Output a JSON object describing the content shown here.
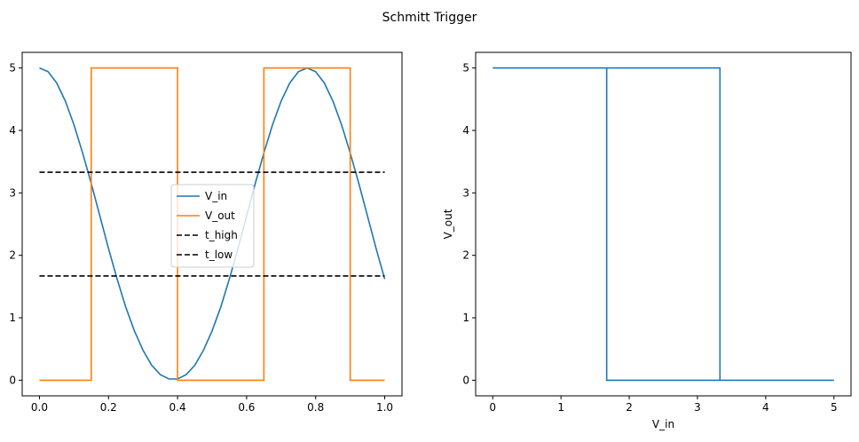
{
  "figure": {
    "title": "Schmitt Trigger"
  },
  "chart_data": [
    {
      "type": "line",
      "title": "",
      "xlabel": "",
      "ylabel": "",
      "xlim": [
        -0.05,
        1.05
      ],
      "ylim": [
        -0.25,
        5.25
      ],
      "xticks": [
        0.0,
        0.2,
        0.4,
        0.6,
        0.8,
        1.0
      ],
      "xtick_labels": [
        "0.0",
        "0.2",
        "0.4",
        "0.6",
        "0.8",
        "1.0"
      ],
      "yticks": [
        0,
        1,
        2,
        3,
        4,
        5
      ],
      "ytick_labels": [
        "0",
        "1",
        "2",
        "3",
        "4",
        "5"
      ],
      "grid": false,
      "legend": {
        "position": "center"
      },
      "series": [
        {
          "name": "V_in",
          "style": "solid",
          "color": "#1f77b4",
          "x": [
            0.0,
            0.025,
            0.05,
            0.075,
            0.1,
            0.125,
            0.15,
            0.175,
            0.2,
            0.225,
            0.25,
            0.275,
            0.3,
            0.325,
            0.35,
            0.375,
            0.4,
            0.425,
            0.45,
            0.475,
            0.5,
            0.525,
            0.55,
            0.575,
            0.6,
            0.625,
            0.65,
            0.675,
            0.7,
            0.725,
            0.75,
            0.775,
            0.8,
            0.825,
            0.85,
            0.875,
            0.9,
            0.925,
            0.95,
            0.975,
            1.0
          ],
          "y": [
            5.0,
            4.94,
            4.76,
            4.47,
            4.09,
            3.64,
            3.15,
            2.63,
            2.11,
            1.62,
            1.17,
            0.79,
            0.48,
            0.24,
            0.09,
            0.02,
            0.02,
            0.09,
            0.24,
            0.48,
            0.79,
            1.17,
            1.62,
            2.11,
            2.63,
            3.15,
            3.64,
            4.09,
            4.47,
            4.76,
            4.94,
            5.0,
            4.94,
            4.76,
            4.47,
            4.09,
            3.64,
            3.15,
            2.63,
            2.11,
            1.62
          ]
        },
        {
          "name": "V_out",
          "style": "solid",
          "color": "#ff7f0e",
          "x": [
            0.0,
            0.15,
            0.15,
            0.4,
            0.4,
            0.65,
            0.65,
            0.9,
            0.9,
            1.0
          ],
          "y": [
            0,
            0,
            5,
            5,
            0,
            0,
            5,
            5,
            0,
            0
          ]
        },
        {
          "name": "t_high",
          "style": "dashed",
          "color": "#000000",
          "x": [
            0.0,
            1.0
          ],
          "y": [
            3.33,
            3.33
          ]
        },
        {
          "name": "t_low",
          "style": "dashed",
          "color": "#000000",
          "x": [
            0.0,
            1.0
          ],
          "y": [
            1.67,
            1.67
          ]
        }
      ]
    },
    {
      "type": "line",
      "title": "",
      "xlabel": "V_in",
      "ylabel": "V_out",
      "xlim": [
        -0.25,
        5.25
      ],
      "ylim": [
        -0.25,
        5.25
      ],
      "xticks": [
        0,
        1,
        2,
        3,
        4,
        5
      ],
      "xtick_labels": [
        "0",
        "1",
        "2",
        "3",
        "4",
        "5"
      ],
      "yticks": [
        0,
        1,
        2,
        3,
        4,
        5
      ],
      "ytick_labels": [
        "0",
        "1",
        "2",
        "3",
        "4",
        "5"
      ],
      "grid": false,
      "series": [
        {
          "name": "",
          "style": "solid",
          "color": "#1f77b4",
          "x": [
            0.0,
            3.33,
            3.33,
            5.0,
            1.67,
            1.67,
            3.33
          ],
          "y": [
            5.0,
            5.0,
            0.0,
            0.0,
            0.0,
            5.0,
            5.0
          ]
        }
      ]
    }
  ]
}
